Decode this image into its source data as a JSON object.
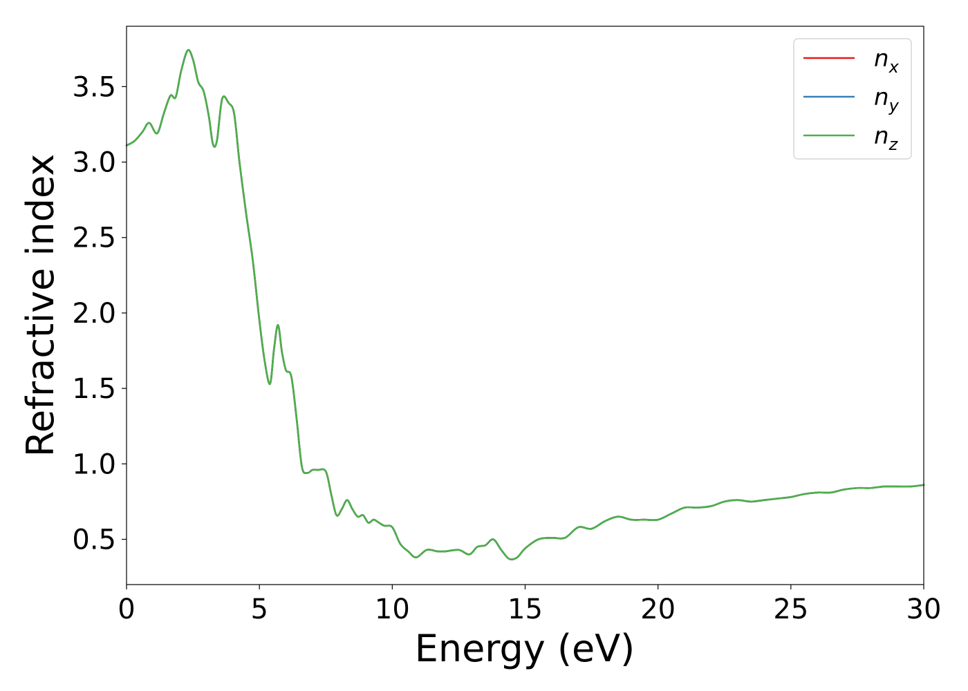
{
  "chart_data": {
    "type": "line",
    "title": "",
    "xlabel": "Energy (eV)",
    "ylabel": "Refractive index",
    "xlim": [
      0,
      30
    ],
    "ylim": [
      0.2,
      3.9
    ],
    "xticks": [
      0,
      5,
      10,
      15,
      20,
      25,
      30
    ],
    "yticks": [
      0.5,
      1.0,
      1.5,
      2.0,
      2.5,
      3.0,
      3.5
    ],
    "xtick_labels": [
      "0",
      "5",
      "10",
      "15",
      "20",
      "25",
      "30"
    ],
    "ytick_labels": [
      "0.5",
      "1.0",
      "1.5",
      "2.0",
      "2.5",
      "3.0",
      "3.5"
    ],
    "grid": false,
    "legend_position": "top-right",
    "x": [
      0,
      0.3,
      0.6,
      0.85,
      1.15,
      1.4,
      1.65,
      1.85,
      2.05,
      2.3,
      2.5,
      2.7,
      2.9,
      3.1,
      3.25,
      3.4,
      3.6,
      3.85,
      4.05,
      4.25,
      4.5,
      4.75,
      5.0,
      5.2,
      5.4,
      5.55,
      5.7,
      5.85,
      6.0,
      6.2,
      6.4,
      6.6,
      6.8,
      7.0,
      7.2,
      7.5,
      7.7,
      7.9,
      8.1,
      8.3,
      8.5,
      8.7,
      8.9,
      9.1,
      9.3,
      9.5,
      9.7,
      10.0,
      10.3,
      10.6,
      10.9,
      11.3,
      11.7,
      12.0,
      12.5,
      12.9,
      13.2,
      13.5,
      13.8,
      14.1,
      14.4,
      14.7,
      15.0,
      15.5,
      16.0,
      16.5,
      17.0,
      17.5,
      18.0,
      18.5,
      19.0,
      19.5,
      20.0,
      20.5,
      21.0,
      21.5,
      22.0,
      22.5,
      23.0,
      23.5,
      24.0,
      24.5,
      25.0,
      25.5,
      26.0,
      26.5,
      27.0,
      27.5,
      28.0,
      28.5,
      29.0,
      29.5,
      30.0
    ],
    "series": [
      {
        "name": "x",
        "color": "#e41a1c",
        "values": [
          3.11,
          3.14,
          3.2,
          3.26,
          3.19,
          3.32,
          3.44,
          3.43,
          3.6,
          3.74,
          3.68,
          3.53,
          3.47,
          3.3,
          3.12,
          3.14,
          3.42,
          3.39,
          3.32,
          3.0,
          2.66,
          2.35,
          1.95,
          1.68,
          1.53,
          1.76,
          1.92,
          1.74,
          1.62,
          1.58,
          1.3,
          0.98,
          0.94,
          0.96,
          0.96,
          0.95,
          0.8,
          0.66,
          0.7,
          0.76,
          0.7,
          0.65,
          0.66,
          0.61,
          0.63,
          0.61,
          0.59,
          0.58,
          0.47,
          0.42,
          0.38,
          0.43,
          0.42,
          0.42,
          0.43,
          0.4,
          0.45,
          0.46,
          0.5,
          0.43,
          0.37,
          0.38,
          0.44,
          0.5,
          0.51,
          0.51,
          0.58,
          0.57,
          0.62,
          0.65,
          0.63,
          0.63,
          0.63,
          0.67,
          0.71,
          0.71,
          0.72,
          0.75,
          0.76,
          0.75,
          0.76,
          0.77,
          0.78,
          0.8,
          0.81,
          0.81,
          0.83,
          0.84,
          0.84,
          0.85,
          0.85,
          0.85,
          0.86
        ]
      },
      {
        "name": "y",
        "color": "#377eb8",
        "values": [
          3.11,
          3.14,
          3.2,
          3.26,
          3.19,
          3.32,
          3.44,
          3.43,
          3.6,
          3.74,
          3.68,
          3.53,
          3.47,
          3.3,
          3.12,
          3.14,
          3.42,
          3.39,
          3.32,
          3.0,
          2.66,
          2.35,
          1.95,
          1.68,
          1.53,
          1.76,
          1.92,
          1.74,
          1.62,
          1.58,
          1.3,
          0.98,
          0.94,
          0.96,
          0.96,
          0.95,
          0.8,
          0.66,
          0.7,
          0.76,
          0.7,
          0.65,
          0.66,
          0.61,
          0.63,
          0.61,
          0.59,
          0.58,
          0.47,
          0.42,
          0.38,
          0.43,
          0.42,
          0.42,
          0.43,
          0.4,
          0.45,
          0.46,
          0.5,
          0.43,
          0.37,
          0.38,
          0.44,
          0.5,
          0.51,
          0.51,
          0.58,
          0.57,
          0.62,
          0.65,
          0.63,
          0.63,
          0.63,
          0.67,
          0.71,
          0.71,
          0.72,
          0.75,
          0.76,
          0.75,
          0.76,
          0.77,
          0.78,
          0.8,
          0.81,
          0.81,
          0.83,
          0.84,
          0.84,
          0.85,
          0.85,
          0.85,
          0.86
        ]
      },
      {
        "name": "z",
        "color": "#4daf4a",
        "values": [
          3.11,
          3.14,
          3.2,
          3.26,
          3.19,
          3.32,
          3.44,
          3.43,
          3.6,
          3.74,
          3.68,
          3.53,
          3.47,
          3.3,
          3.12,
          3.14,
          3.42,
          3.39,
          3.32,
          3.0,
          2.66,
          2.35,
          1.95,
          1.68,
          1.53,
          1.76,
          1.92,
          1.74,
          1.62,
          1.58,
          1.3,
          0.98,
          0.94,
          0.96,
          0.96,
          0.95,
          0.8,
          0.66,
          0.7,
          0.76,
          0.7,
          0.65,
          0.66,
          0.61,
          0.63,
          0.61,
          0.59,
          0.58,
          0.47,
          0.42,
          0.38,
          0.43,
          0.42,
          0.42,
          0.43,
          0.4,
          0.45,
          0.46,
          0.5,
          0.43,
          0.37,
          0.38,
          0.44,
          0.5,
          0.51,
          0.51,
          0.58,
          0.57,
          0.62,
          0.65,
          0.63,
          0.63,
          0.63,
          0.67,
          0.71,
          0.71,
          0.72,
          0.75,
          0.76,
          0.75,
          0.76,
          0.77,
          0.78,
          0.8,
          0.81,
          0.81,
          0.83,
          0.84,
          0.84,
          0.85,
          0.85,
          0.85,
          0.86
        ]
      }
    ],
    "legend": {
      "symbol": "n",
      "entries": [
        "x",
        "y",
        "z"
      ]
    }
  }
}
